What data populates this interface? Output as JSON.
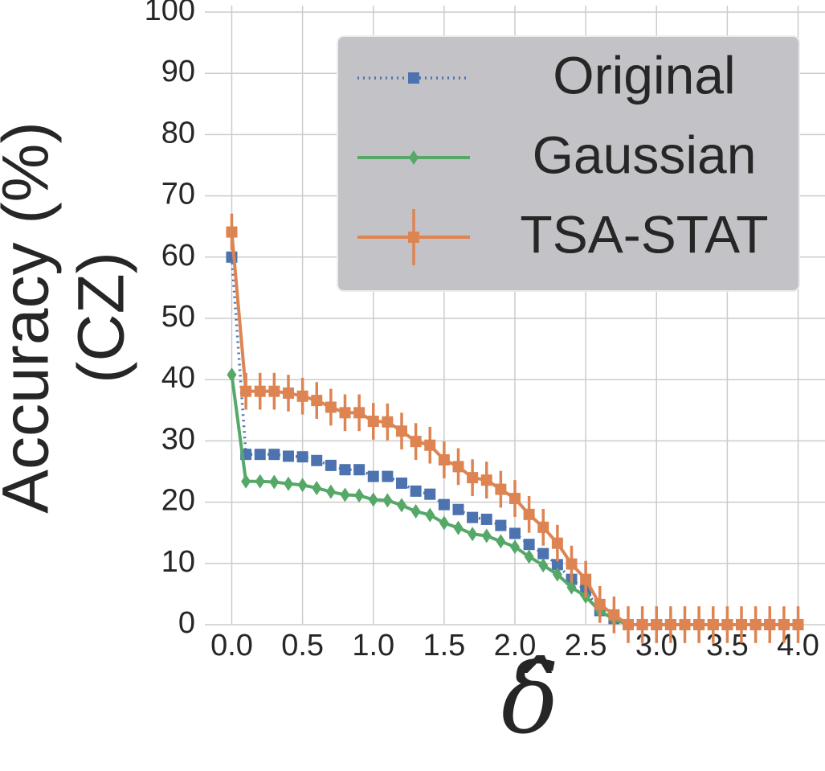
{
  "chart_data": {
    "type": "line",
    "xlabel": "δ̂",
    "ylabel": [
      "Accuracy (%)",
      "(CZ)"
    ],
    "x": [
      0.0,
      0.1,
      0.2,
      0.3,
      0.4,
      0.5,
      0.6,
      0.7,
      0.8,
      0.9,
      1.0,
      1.1,
      1.2,
      1.3,
      1.4,
      1.5,
      1.6,
      1.7,
      1.8,
      1.9,
      2.0,
      2.1,
      2.2,
      2.3,
      2.4,
      2.5,
      2.6,
      2.7,
      2.8,
      2.9,
      3.0,
      3.1,
      3.2,
      3.3,
      3.4,
      3.5,
      3.6,
      3.7,
      3.8,
      3.9,
      4.0
    ],
    "series": [
      {
        "name": "Original",
        "color": "#4c72b0",
        "marker": "square",
        "linestyle": "dotted",
        "values": [
          60,
          27.8,
          27.8,
          27.8,
          27.5,
          27.4,
          26.8,
          26.0,
          25.3,
          25.3,
          24.2,
          24.2,
          23.1,
          21.8,
          21.3,
          19.6,
          18.8,
          17.5,
          17.2,
          16.2,
          14.9,
          13.1,
          11.6,
          9.8,
          7.4,
          5.6,
          2.3,
          1.0,
          0,
          0,
          0,
          0,
          0,
          0,
          0,
          0,
          0,
          0,
          0,
          0,
          0
        ]
      },
      {
        "name": "Gaussian",
        "color": "#55a868",
        "marker": "diamond",
        "linestyle": "solid",
        "values": [
          40.8,
          23.4,
          23.4,
          23.3,
          23.0,
          22.8,
          22.3,
          21.7,
          21.2,
          21.1,
          20.4,
          20.3,
          19.5,
          18.5,
          17.9,
          16.6,
          15.8,
          14.8,
          14.5,
          13.6,
          12.7,
          11.1,
          9.7,
          8.2,
          6.1,
          4.6,
          2.2,
          0.9,
          0,
          0,
          0,
          0,
          0,
          0,
          0,
          0,
          0,
          0,
          0,
          0,
          0
        ]
      },
      {
        "name": "TSA-STAT",
        "color": "#dd8452",
        "marker": "square",
        "linestyle": "solid",
        "values": [
          64.1,
          38.1,
          38.1,
          38.1,
          37.8,
          37.3,
          36.6,
          35.5,
          34.6,
          34.6,
          33.2,
          33.1,
          31.6,
          29.9,
          29.3,
          26.9,
          25.8,
          24.0,
          23.6,
          22.1,
          20.6,
          18.0,
          15.9,
          13.3,
          9.9,
          7.4,
          3.3,
          1.6,
          0,
          0,
          0,
          0,
          0,
          0,
          0,
          0,
          0,
          0,
          0,
          0,
          0
        ],
        "errors": [
          3,
          3,
          3,
          3,
          3,
          3,
          3,
          3,
          3,
          3,
          3,
          3,
          3,
          3,
          3,
          3,
          3,
          3,
          3,
          3,
          3,
          3,
          3,
          3,
          3,
          3,
          3,
          3,
          3,
          3,
          3,
          3,
          3,
          3,
          3,
          3,
          3,
          3,
          3,
          3,
          3
        ]
      }
    ],
    "xlim": [
      -0.19,
      4.19
    ],
    "ylim": [
      0,
      100
    ],
    "xticks": [
      {
        "value": 0.0,
        "label": "0.0"
      },
      0.5,
      {
        "value": 1.0,
        "label": "1.0"
      },
      1.5,
      {
        "value": 2.0,
        "label": "2.0"
      },
      2.5,
      {
        "value": 3.0,
        "label": "3.0"
      },
      3.5,
      {
        "value": 4.0,
        "label": "4.0"
      }
    ],
    "yticks": [
      0,
      10,
      20,
      30,
      40,
      50,
      60,
      70,
      80,
      90,
      100
    ],
    "grid": true,
    "legend": "upper right"
  }
}
